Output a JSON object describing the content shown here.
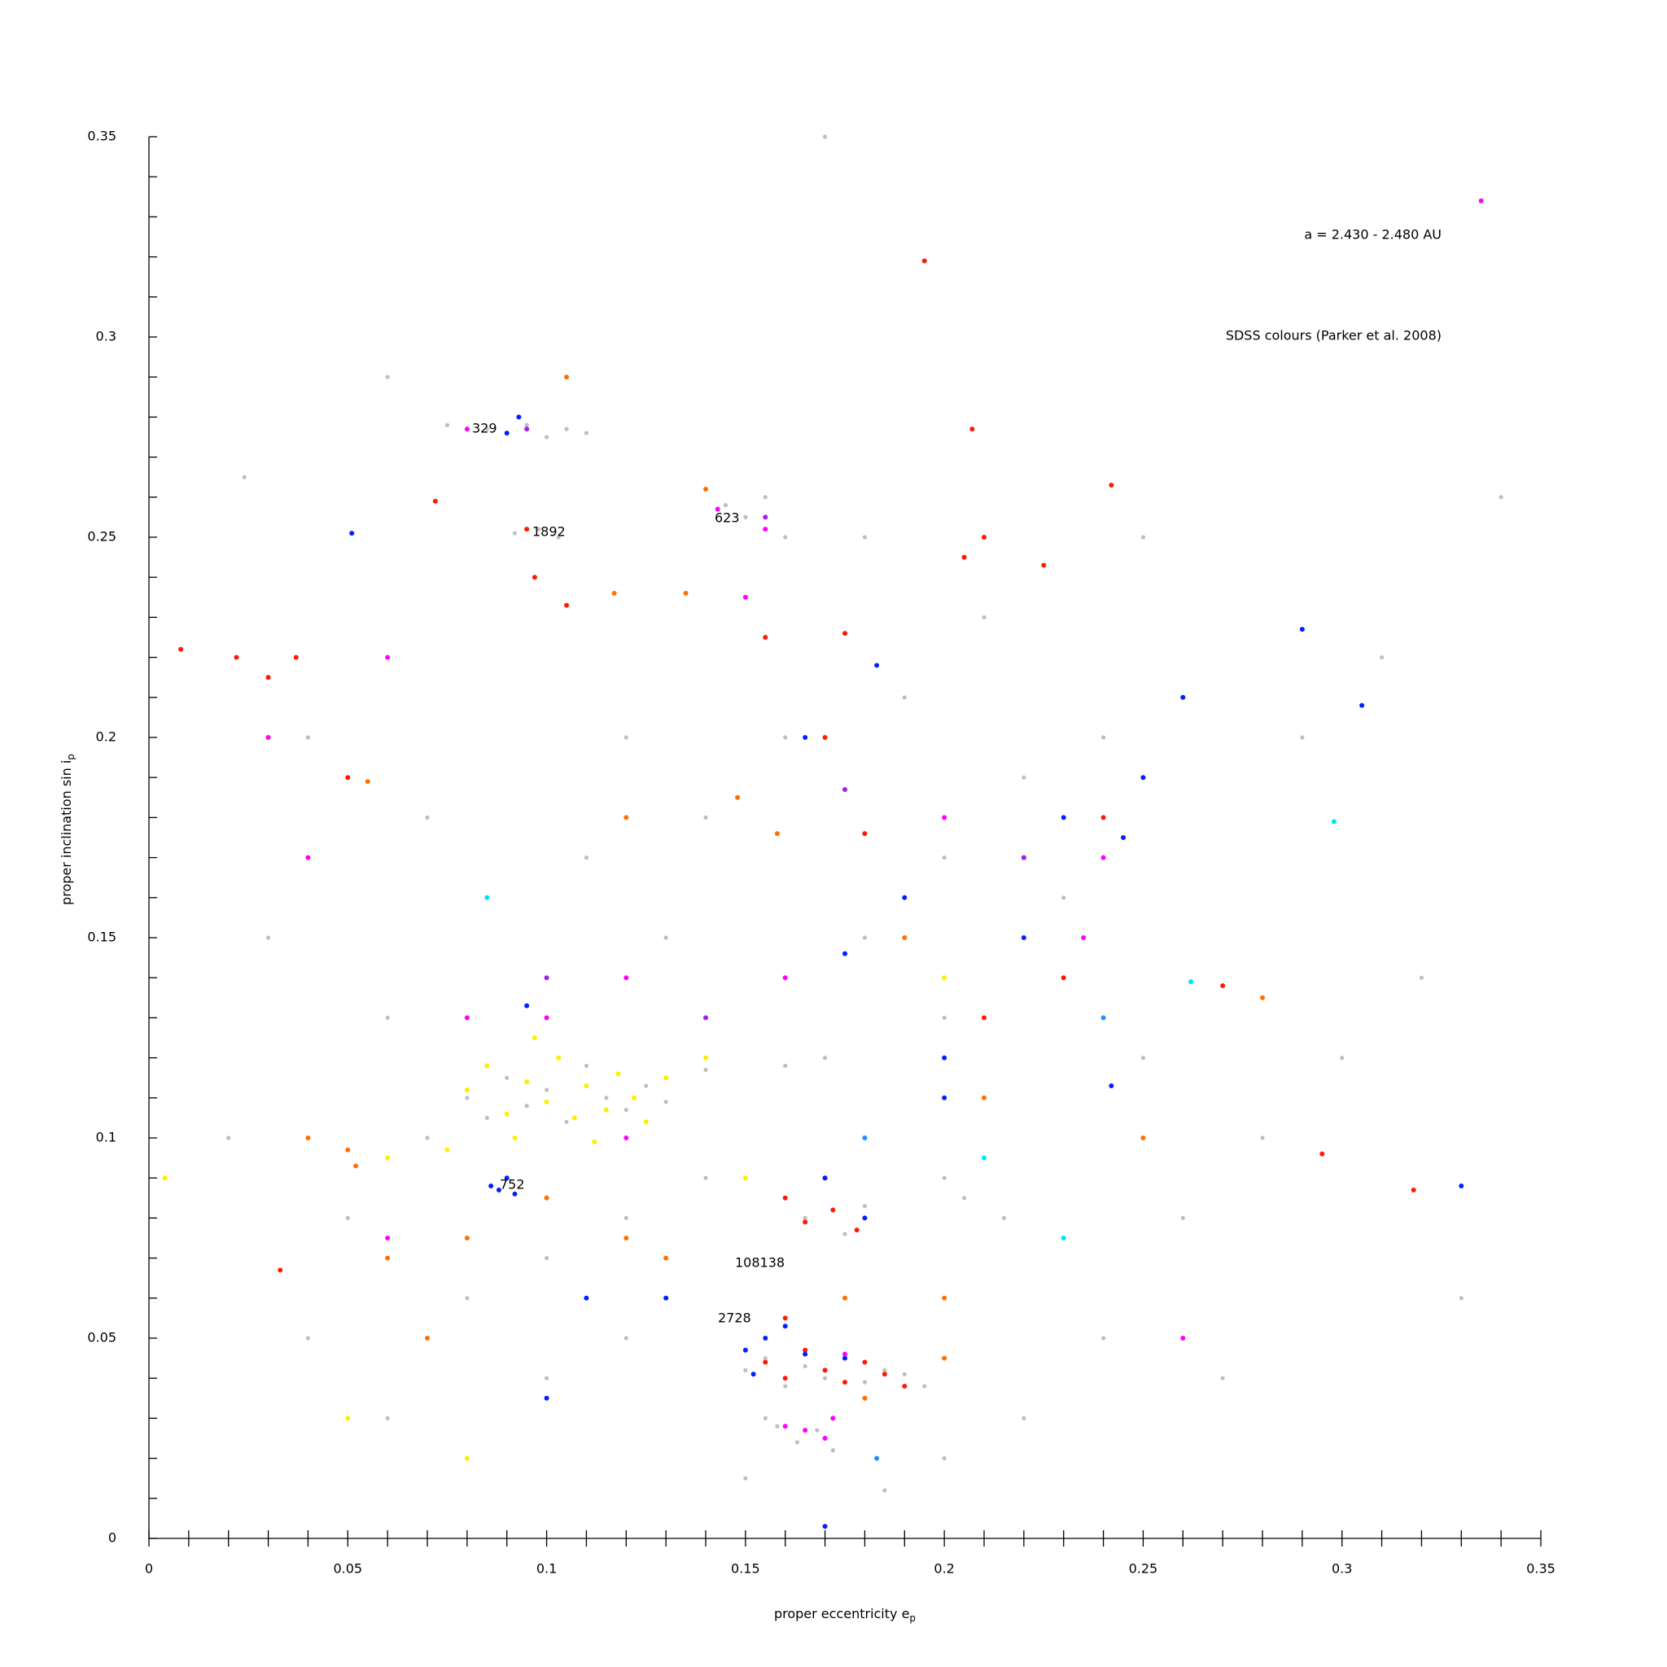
{
  "chart_data": {
    "type": "scatter",
    "annotations": [
      "a = 2.430 - 2.480 AU",
      "SDSS colours (Parker et al. 2008)",
      "329",
      "1892",
      "623",
      "752",
      "108138",
      "2728"
    ],
    "xlabel": "proper eccentricity e",
    "xlabel_sub": "p",
    "ylabel": "proper inclination sin i",
    "ylabel_sub": "p",
    "xlim": [
      0,
      0.35
    ],
    "ylim": [
      0,
      0.35
    ],
    "xticks": [
      0,
      0.05,
      0.1,
      0.15,
      0.2,
      0.25,
      0.3,
      0.35
    ],
    "yticks": [
      0,
      0.05,
      0.1,
      0.15,
      0.2,
      0.25,
      0.3,
      0.35
    ],
    "xminorticks": [
      0.01,
      0.02,
      0.03,
      0.04,
      0.06,
      0.07,
      0.08,
      0.09,
      0.11,
      0.12,
      0.13,
      0.14,
      0.16,
      0.17,
      0.18,
      0.19,
      0.21,
      0.22,
      0.23,
      0.24,
      0.26,
      0.27,
      0.28,
      0.29,
      0.31,
      0.32,
      0.33,
      0.34
    ],
    "yminorticks": [
      0.01,
      0.02,
      0.03,
      0.04,
      0.06,
      0.07,
      0.08,
      0.09,
      0.11,
      0.12,
      0.13,
      0.14,
      0.16,
      0.17,
      0.18,
      0.19,
      0.21,
      0.22,
      0.23,
      0.24,
      0.26,
      0.27,
      0.28,
      0.29,
      0.31,
      0.32,
      0.33,
      0.34
    ],
    "series": [
      {
        "color": "#bfbfbf",
        "x": [
          0.085,
          0.09,
          0.095,
          0.1,
          0.105,
          0.11,
          0.075,
          0.092,
          0.098,
          0.103,
          0.145,
          0.15,
          0.155,
          0.16,
          0.08,
          0.085,
          0.09,
          0.095,
          0.1,
          0.105,
          0.11,
          0.115,
          0.12,
          0.125,
          0.13,
          0.07,
          0.14,
          0.16,
          0.15,
          0.155,
          0.16,
          0.165,
          0.17,
          0.175,
          0.18,
          0.185,
          0.19,
          0.195,
          0.158,
          0.163,
          0.168,
          0.172,
          0.155,
          0.16,
          0.165,
          0.17,
          0.175,
          0.18,
          0.2,
          0.205,
          0.21,
          0.215,
          0.02,
          0.03,
          0.04,
          0.05,
          0.06,
          0.07,
          0.12,
          0.13,
          0.14,
          0.16,
          0.18,
          0.2,
          0.22,
          0.24,
          0.23,
          0.25,
          0.26,
          0.28,
          0.3,
          0.32,
          0.33,
          0.27,
          0.24,
          0.22,
          0.12,
          0.1,
          0.08,
          0.06,
          0.04,
          0.14,
          0.12,
          0.1,
          0.11,
          0.17,
          0.19,
          0.21,
          0.18,
          0.25,
          0.29,
          0.31,
          0.34,
          0.17,
          0.024,
          0.06,
          0.2,
          0.15,
          0.185,
          0.2
        ],
        "values": [
          0.277,
          0.276,
          0.278,
          0.275,
          0.277,
          0.276,
          0.278,
          0.251,
          0.252,
          0.25,
          0.258,
          0.255,
          0.26,
          0.25,
          0.11,
          0.105,
          0.115,
          0.108,
          0.112,
          0.104,
          0.118,
          0.11,
          0.107,
          0.113,
          0.109,
          0.1,
          0.117,
          0.118,
          0.042,
          0.045,
          0.038,
          0.043,
          0.04,
          0.046,
          0.039,
          0.042,
          0.041,
          0.038,
          0.028,
          0.024,
          0.027,
          0.022,
          0.03,
          0.085,
          0.08,
          0.09,
          0.076,
          0.083,
          0.09,
          0.085,
          0.095,
          0.08,
          0.1,
          0.15,
          0.2,
          0.08,
          0.13,
          0.18,
          0.2,
          0.15,
          0.18,
          0.2,
          0.15,
          0.17,
          0.19,
          0.2,
          0.16,
          0.12,
          0.08,
          0.1,
          0.12,
          0.14,
          0.06,
          0.04,
          0.05,
          0.03,
          0.05,
          0.04,
          0.06,
          0.03,
          0.05,
          0.09,
          0.08,
          0.07,
          0.17,
          0.12,
          0.21,
          0.23,
          0.25,
          0.25,
          0.2,
          0.22,
          0.26,
          0.35,
          0.265,
          0.29,
          0.13,
          0.015,
          0.012,
          0.02
        ]
      },
      {
        "color": "#ffee00",
        "x": [
          0.08,
          0.085,
          0.09,
          0.095,
          0.1,
          0.103,
          0.107,
          0.11,
          0.115,
          0.118,
          0.122,
          0.125,
          0.092,
          0.097,
          0.112,
          0.075,
          0.13,
          0.14,
          0.06,
          0.004,
          0.05,
          0.08,
          0.2,
          0.15
        ],
        "values": [
          0.112,
          0.118,
          0.106,
          0.114,
          0.109,
          0.12,
          0.105,
          0.113,
          0.107,
          0.116,
          0.11,
          0.104,
          0.1,
          0.125,
          0.099,
          0.097,
          0.115,
          0.12,
          0.095,
          0.09,
          0.03,
          0.02,
          0.14,
          0.09
        ]
      },
      {
        "color": "#ff7000",
        "x": [
          0.055,
          0.04,
          0.05,
          0.052,
          0.14,
          0.135,
          0.117,
          0.12,
          0.148,
          0.158,
          0.19,
          0.21,
          0.13,
          0.12,
          0.1,
          0.08,
          0.07,
          0.06,
          0.2,
          0.18,
          0.175,
          0.25,
          0.28,
          0.105,
          0.2
        ],
        "values": [
          0.189,
          0.1,
          0.097,
          0.093,
          0.262,
          0.236,
          0.236,
          0.18,
          0.185,
          0.176,
          0.15,
          0.11,
          0.07,
          0.075,
          0.085,
          0.075,
          0.05,
          0.07,
          0.045,
          0.035,
          0.06,
          0.1,
          0.135,
          0.29,
          0.06
        ]
      },
      {
        "color": "#ff1a00",
        "x": [
          0.008,
          0.022,
          0.03,
          0.037,
          0.072,
          0.097,
          0.105,
          0.095,
          0.155,
          0.175,
          0.195,
          0.207,
          0.242,
          0.205,
          0.21,
          0.225,
          0.17,
          0.18,
          0.24,
          0.22,
          0.23,
          0.21,
          0.16,
          0.165,
          0.172,
          0.178,
          0.17,
          0.155,
          0.16,
          0.165,
          0.17,
          0.175,
          0.18,
          0.185,
          0.19,
          0.16,
          0.033,
          0.27,
          0.318,
          0.295,
          0.05
        ],
        "values": [
          0.222,
          0.22,
          0.215,
          0.22,
          0.259,
          0.24,
          0.233,
          0.252,
          0.225,
          0.226,
          0.319,
          0.277,
          0.263,
          0.245,
          0.25,
          0.243,
          0.2,
          0.176,
          0.18,
          0.17,
          0.14,
          0.13,
          0.085,
          0.079,
          0.082,
          0.077,
          0.09,
          0.044,
          0.04,
          0.047,
          0.042,
          0.039,
          0.044,
          0.041,
          0.038,
          0.055,
          0.067,
          0.138,
          0.087,
          0.096,
          0.19
        ]
      },
      {
        "color": "#0020ff",
        "x": [
          0.051,
          0.09,
          0.093,
          0.088,
          0.09,
          0.092,
          0.086,
          0.183,
          0.165,
          0.25,
          0.245,
          0.26,
          0.23,
          0.19,
          0.175,
          0.2,
          0.22,
          0.155,
          0.15,
          0.16,
          0.165,
          0.152,
          0.175,
          0.13,
          0.11,
          0.1,
          0.29,
          0.305,
          0.33,
          0.242,
          0.2,
          0.17,
          0.18,
          0.095,
          0.17
        ],
        "values": [
          0.251,
          0.276,
          0.28,
          0.087,
          0.09,
          0.086,
          0.088,
          0.218,
          0.2,
          0.19,
          0.175,
          0.21,
          0.18,
          0.16,
          0.146,
          0.12,
          0.15,
          0.05,
          0.047,
          0.053,
          0.046,
          0.041,
          0.045,
          0.06,
          0.06,
          0.035,
          0.227,
          0.208,
          0.088,
          0.113,
          0.11,
          0.09,
          0.08,
          0.133,
          0.003
        ]
      },
      {
        "color": "#ff00ff",
        "x": [
          0.335,
          0.08,
          0.155,
          0.143,
          0.15,
          0.175,
          0.17,
          0.165,
          0.16,
          0.172,
          0.06,
          0.08,
          0.1,
          0.12,
          0.16,
          0.2,
          0.24,
          0.04,
          0.03,
          0.06,
          0.26,
          0.235,
          0.12
        ],
        "values": [
          0.334,
          0.277,
          0.252,
          0.257,
          0.235,
          0.046,
          0.025,
          0.027,
          0.028,
          0.03,
          0.075,
          0.13,
          0.13,
          0.14,
          0.14,
          0.18,
          0.17,
          0.17,
          0.2,
          0.22,
          0.05,
          0.15,
          0.1
        ]
      },
      {
        "color": "#a020f0",
        "x": [
          0.095,
          0.175,
          0.155,
          0.1,
          0.14,
          0.22
        ],
        "values": [
          0.277,
          0.187,
          0.255,
          0.14,
          0.13,
          0.17
        ]
      },
      {
        "color": "#1e90ff",
        "x": [
          0.183,
          0.18,
          0.24
        ],
        "values": [
          0.02,
          0.1,
          0.13
        ]
      },
      {
        "color": "#00e5ee",
        "x": [
          0.298,
          0.262,
          0.085,
          0.21,
          0.23
        ],
        "values": [
          0.179,
          0.139,
          0.16,
          0.095,
          0.075
        ]
      }
    ]
  }
}
